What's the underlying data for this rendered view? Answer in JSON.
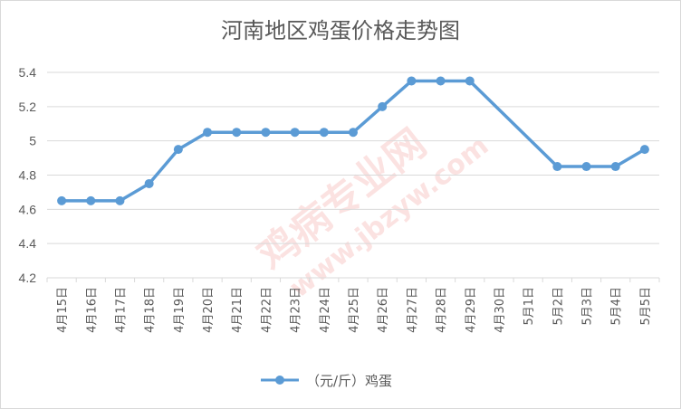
{
  "chart_data": {
    "type": "line",
    "title": "河南地区鸡蛋价格走势图",
    "xlabel": "",
    "ylabel": "",
    "categories": [
      "4月15日",
      "4月16日",
      "4月17日",
      "4月18日",
      "4月19日",
      "4月20日",
      "4月21日",
      "4月22日",
      "4月23日",
      "4月24日",
      "4月25日",
      "4月26日",
      "4月27日",
      "4月28日",
      "4月29日",
      "4月30日",
      "5月1日",
      "5月2日",
      "5月3日",
      "5月4日",
      "5月5日"
    ],
    "series": [
      {
        "name": "（元/斤）鸡蛋",
        "values": [
          4.65,
          4.65,
          4.65,
          4.75,
          4.95,
          5.05,
          5.05,
          5.05,
          5.05,
          5.05,
          5.05,
          5.2,
          5.35,
          5.35,
          5.35,
          null,
          null,
          4.85,
          4.85,
          4.85,
          4.95
        ]
      }
    ],
    "ylim": [
      4.2,
      5.4
    ],
    "yticks": [
      "4.2",
      "4.4",
      "4.6",
      "4.8",
      "5",
      "5.2",
      "5.4"
    ],
    "grid": true,
    "legend": "bottom",
    "colors": {
      "line": "#5b9bd5",
      "grid": "#d9d9d9",
      "text": "#595959"
    }
  },
  "watermark": {
    "text": "鸡病专业网",
    "url": "www.jbzyw.com"
  }
}
